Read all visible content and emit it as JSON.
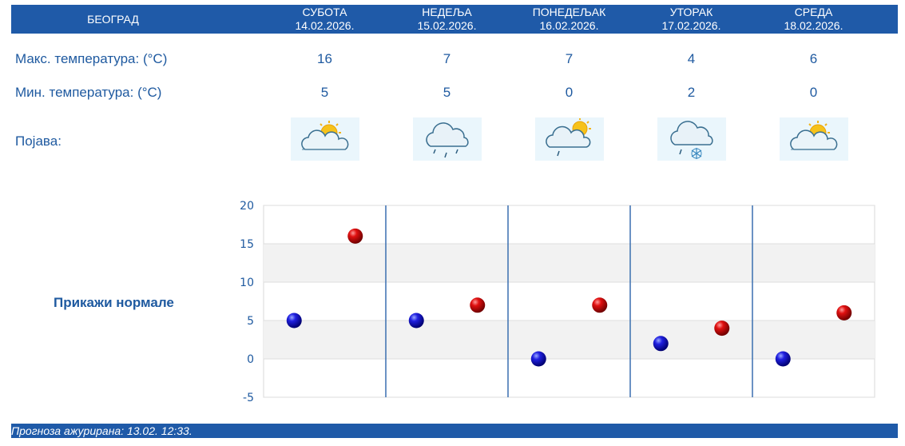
{
  "header": {
    "city": "БЕОГРАД",
    "days": [
      {
        "name": "СУБОТА",
        "date": "14.02.2026."
      },
      {
        "name": "НЕДЕЉА",
        "date": "15.02.2026."
      },
      {
        "name": "ПОНЕДЕЉАК",
        "date": "16.02.2026."
      },
      {
        "name": "УТОРАК",
        "date": "17.02.2026."
      },
      {
        "name": "СРЕДА",
        "date": "18.02.2026."
      }
    ]
  },
  "rows": {
    "max_label": "Макс. температура: (°C)",
    "min_label": "Мин. температура: (°C)",
    "phenomenon_label": "Појава:",
    "max": [
      "16",
      "7",
      "7",
      "4",
      "6"
    ],
    "min": [
      "5",
      "5",
      "0",
      "2",
      "0"
    ],
    "icons": [
      "sun-behind-cloud-icon",
      "rain-cloud-icon",
      "sun-cloud-light-rain-icon",
      "cloud-rain-snow-icon",
      "sun-behind-cloud-icon"
    ]
  },
  "normals_link": "Прикажи нормале",
  "footer": {
    "updated": "Прогноза ажурирана:  13.02. 12:33."
  },
  "colors": {
    "brand": "#1f5aa8",
    "min_marker": "#1212c8",
    "max_marker": "#d01010"
  },
  "chart_data": {
    "type": "scatter",
    "categories": [
      "14.02.2026.",
      "15.02.2026.",
      "16.02.2026.",
      "17.02.2026.",
      "18.02.2026."
    ],
    "series": [
      {
        "values": [
          5,
          5,
          0,
          2,
          0
        ]
      },
      {
        "values": [
          16,
          7,
          7,
          4,
          6
        ]
      }
    ],
    "ylim": [
      -5,
      20
    ],
    "yticks": [
      20,
      15,
      10,
      5,
      0,
      -5
    ],
    "grid": true
  }
}
